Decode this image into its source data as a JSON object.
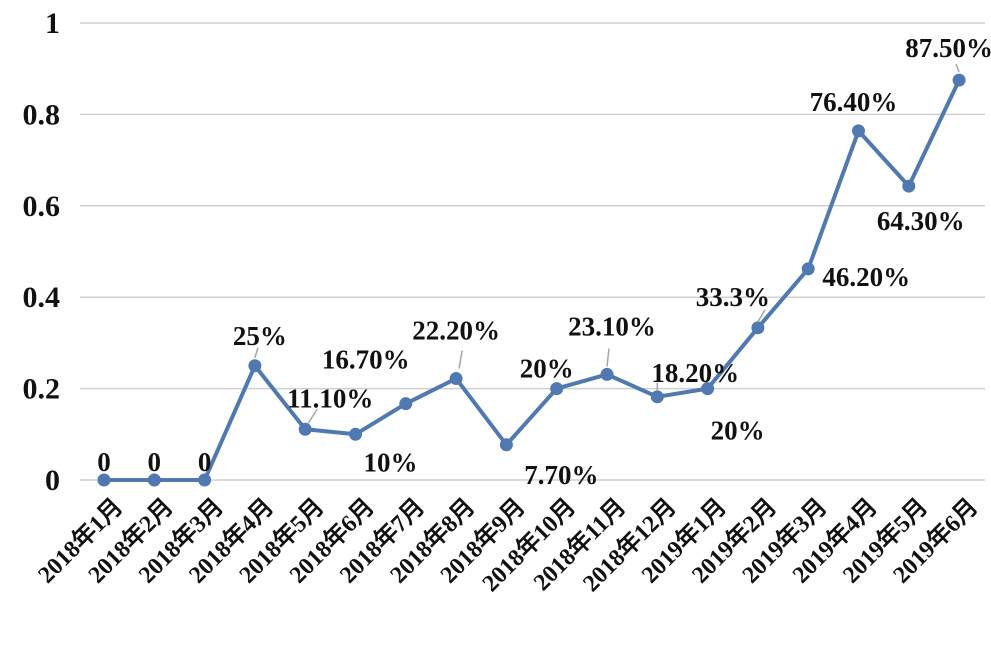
{
  "chart_data": {
    "type": "line",
    "title": "",
    "xlabel": "",
    "ylabel": "",
    "ylim": [
      0,
      1
    ],
    "grid": true,
    "legend": "none",
    "categories": [
      "2018年1月",
      "2018年2月",
      "2018年3月",
      "2018年4月",
      "2018年5月",
      "2018年6月",
      "2018年7月",
      "2018年8月",
      "2018年9月",
      "2018年10月",
      "2018年11月",
      "2018年12月",
      "2019年1月",
      "2019年2月",
      "2019年3月",
      "2019年4月",
      "2019年5月",
      "2019年6月"
    ],
    "y_ticks": [
      "0",
      "0.2",
      "0.4",
      "0.6",
      "0.8",
      "1"
    ],
    "series": [
      {
        "color": "#4f79b0",
        "values": [
          0,
          0,
          0,
          0.25,
          0.111,
          0.1,
          0.167,
          0.222,
          0.077,
          0.2,
          0.231,
          0.182,
          0.2,
          0.333,
          0.462,
          0.764,
          0.643,
          0.875
        ],
        "labels": [
          "0",
          "0",
          "0",
          "25%",
          "11.10%",
          "10%",
          "16.70%",
          "22.20%",
          "7.70%",
          "20%",
          "23.10%",
          "18.20%",
          "20%",
          "33.3%",
          "46.20%",
          "76.40%",
          "64.30%",
          "87.50%"
        ]
      }
    ],
    "colors": {
      "line": "#4f79b0",
      "grid": "#d0d0d0",
      "leader": "#a6a6a6"
    }
  }
}
